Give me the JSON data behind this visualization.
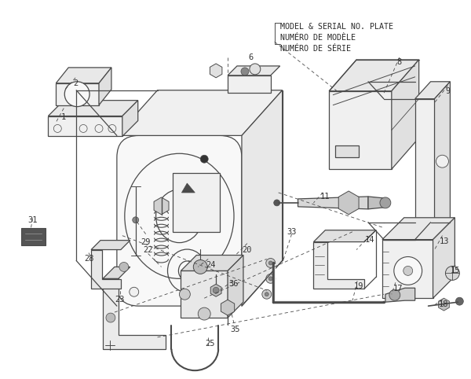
{
  "bg_color": "#ffffff",
  "line_color": "#4a4a4a",
  "label_color": "#333333",
  "font_size": 7.5,
  "header_text": [
    "MODEL & SERIAL NO. PLATE",
    "NUMÉRO DE MODÈLE",
    "NUMÉRO DE SÉRIE"
  ],
  "figsize": [
    6.0,
    4.82
  ],
  "dpi": 100
}
